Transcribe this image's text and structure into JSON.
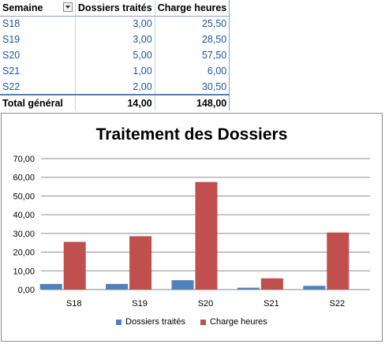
{
  "table": {
    "headers": [
      "Semaine",
      "Dossiers traités",
      "Charge heures"
    ],
    "rows": [
      [
        "S18",
        "3,00",
        "25,50"
      ],
      [
        "S19",
        "3,00",
        "28,50"
      ],
      [
        "S20",
        "5,00",
        "57,50"
      ],
      [
        "S21",
        "1,00",
        "6,00"
      ],
      [
        "S22",
        "2,00",
        "30,50"
      ]
    ],
    "total": [
      "Total général",
      "14,00",
      "148,00"
    ]
  },
  "chart_data": {
    "type": "bar",
    "title": "Traitement des Dossiers",
    "categories": [
      "S18",
      "S19",
      "S20",
      "S21",
      "S22"
    ],
    "series": [
      {
        "name": "Dossiers traités",
        "values": [
          3,
          3,
          5,
          1,
          2
        ],
        "color": "#4f81bd"
      },
      {
        "name": "Charge heures",
        "values": [
          25.5,
          28.5,
          57.5,
          6,
          30.5
        ],
        "color": "#c0504d"
      }
    ],
    "ylim": [
      0,
      70
    ],
    "yticks": [
      "0,00",
      "10,00",
      "20,00",
      "30,00",
      "40,00",
      "50,00",
      "60,00",
      "70,00"
    ],
    "grid": true,
    "legend_position": "bottom"
  }
}
